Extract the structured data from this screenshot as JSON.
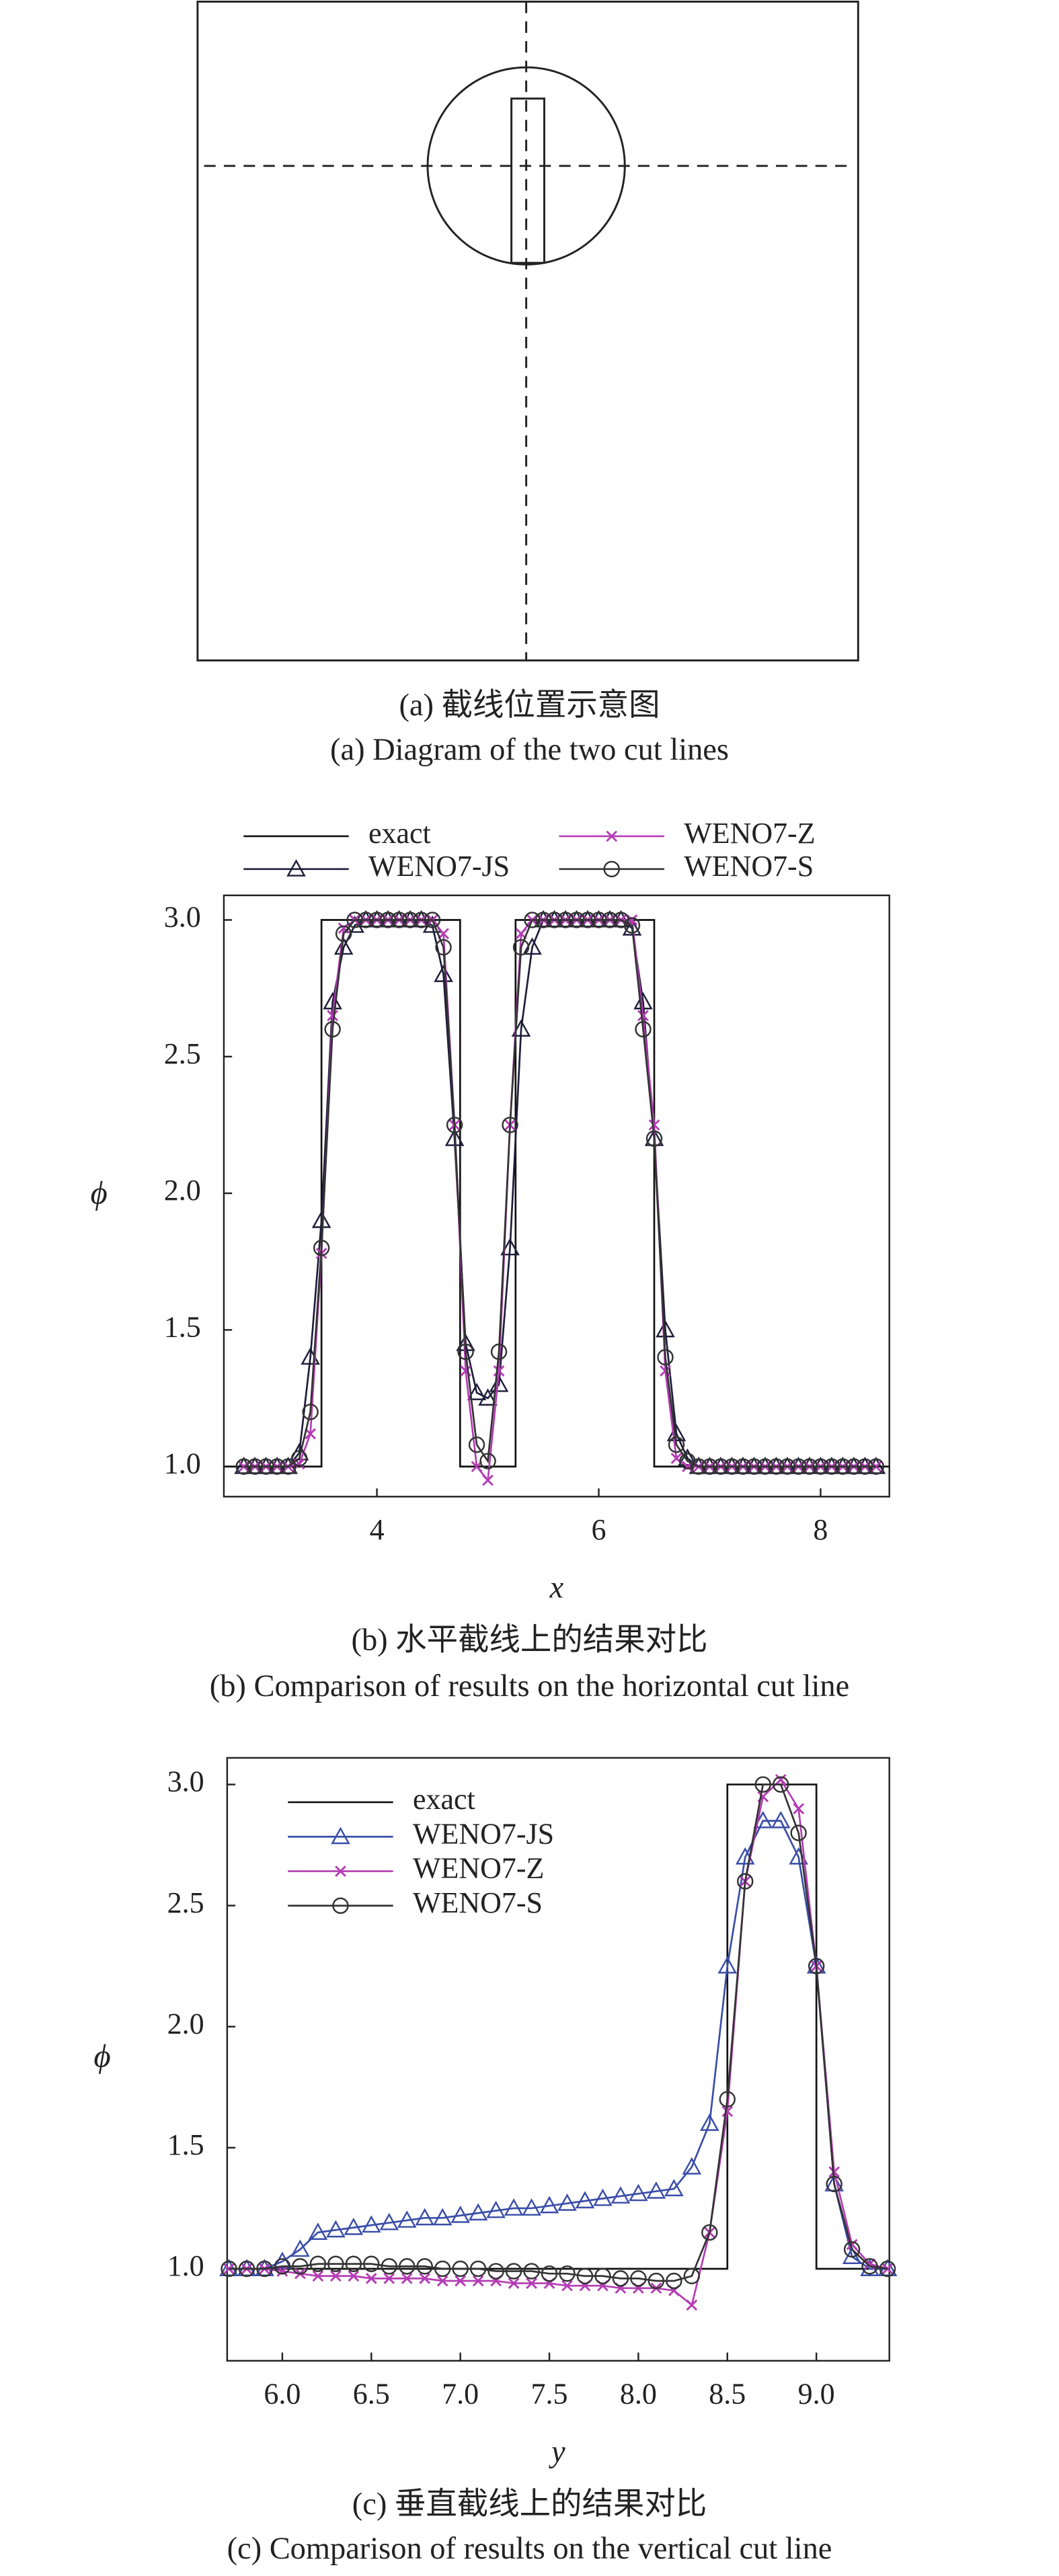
{
  "diagram": {
    "captions": [
      "(a) 截线位置示意图",
      "(a) Diagram of the two cut lines"
    ]
  },
  "chart_data": [
    {
      "type": "line",
      "captions": [
        "(b) 水平截线上的结果对比",
        "(b) Comparison of results on the horizontal cut line"
      ],
      "x_label": "x",
      "y_label": "ϕ",
      "legend": "top",
      "xlim": [
        2.62,
        8.62
      ],
      "ylim": [
        0.89,
        3.09
      ],
      "xticks": [
        4,
        6,
        8
      ],
      "yticks": [
        {
          "value": 1,
          "label": "1.0"
        },
        1.5,
        {
          "value": 2,
          "label": "2.0"
        },
        2.5,
        {
          "value": 3,
          "label": "3.0"
        }
      ],
      "x": [
        2.8,
        2.9,
        3.0,
        3.1,
        3.2,
        3.3,
        3.4,
        3.5,
        3.6,
        3.7,
        3.8,
        3.9,
        4.0,
        4.1,
        4.2,
        4.3,
        4.4,
        4.5,
        4.6,
        4.7,
        4.8,
        4.9,
        5.0,
        5.1,
        5.2,
        5.3,
        5.4,
        5.5,
        5.6,
        5.7,
        5.8,
        5.9,
        6.0,
        6.1,
        6.2,
        6.3,
        6.4,
        6.5,
        6.6,
        6.7,
        6.8,
        6.9,
        7.0,
        7.1,
        7.2,
        7.3,
        7.4,
        7.5,
        7.6,
        7.7,
        7.8,
        7.9,
        8.0,
        8.1,
        8.2,
        8.3,
        8.4,
        8.5
      ],
      "series": [
        {
          "name": "exact",
          "color": "#111111",
          "marker": "none",
          "x": [
            2.62,
            3.5,
            3.5,
            4.75,
            4.75,
            5.25,
            5.25,
            6.5,
            6.5,
            8.62
          ],
          "values": [
            1,
            1,
            3,
            3,
            1,
            1,
            3,
            3,
            1,
            1
          ]
        },
        {
          "name": "WENO7-JS",
          "color": "#1d1d3a",
          "marker": "triangle",
          "values": [
            1,
            1,
            1,
            1,
            1,
            1.05,
            1.4,
            1.9,
            2.7,
            2.9,
            2.98,
            3,
            3,
            3,
            3,
            3,
            3,
            2.98,
            2.8,
            2.2,
            1.45,
            1.27,
            1.25,
            1.3,
            1.8,
            2.6,
            2.9,
            3,
            3,
            3,
            3,
            3,
            3,
            3,
            3,
            2.97,
            2.7,
            2.2,
            1.5,
            1.12,
            1.03,
            1,
            1,
            1,
            1,
            1,
            1,
            1,
            1,
            1,
            1,
            1,
            1,
            1,
            1,
            1,
            1,
            1
          ]
        },
        {
          "name": "WENO7-Z",
          "color": "#b43cb4",
          "marker": "x",
          "values": [
            1,
            1,
            1,
            1,
            1,
            1.01,
            1.12,
            1.78,
            2.65,
            2.97,
            3,
            3,
            3,
            3,
            3,
            3,
            3,
            3,
            2.95,
            2.25,
            1.35,
            1,
            0.95,
            1.35,
            2.25,
            2.95,
            3,
            3,
            3,
            3,
            3,
            3,
            3,
            3,
            3,
            3,
            2.65,
            2.25,
            1.35,
            1.03,
            1,
            1,
            1,
            1,
            1,
            1,
            1,
            1,
            1,
            1,
            1,
            1,
            1,
            1,
            1,
            1,
            1,
            1
          ]
        },
        {
          "name": "WENO7-S",
          "color": "#333333",
          "marker": "circle",
          "values": [
            1,
            1,
            1,
            1,
            1,
            1.03,
            1.2,
            1.8,
            2.6,
            2.95,
            3,
            3,
            3,
            3,
            3,
            3,
            3,
            3,
            2.9,
            2.25,
            1.42,
            1.08,
            1.02,
            1.42,
            2.25,
            2.9,
            3,
            3,
            3,
            3,
            3,
            3,
            3,
            3,
            3,
            2.98,
            2.6,
            2.2,
            1.4,
            1.08,
            1.02,
            1,
            1,
            1,
            1,
            1,
            1,
            1,
            1,
            1,
            1,
            1,
            1,
            1,
            1,
            1,
            1,
            1
          ]
        }
      ]
    },
    {
      "type": "line",
      "captions": [
        "(c) 垂直截线上的结果对比",
        "(c) Comparison of results on the vertical cut line"
      ],
      "x_label": "y",
      "y_label": "ϕ",
      "legend": "upper left",
      "xlim": [
        5.69,
        9.41
      ],
      "ylim": [
        0.62,
        3.11
      ],
      "xticks": [
        {
          "value": 6,
          "label": "6.0"
        },
        6.5,
        {
          "value": 7,
          "label": "7.0"
        },
        7.5,
        {
          "value": 8,
          "label": "8.0"
        },
        8.5,
        {
          "value": 9,
          "label": "9.0"
        }
      ],
      "yticks": [
        {
          "value": 1,
          "label": "1.0"
        },
        1.5,
        {
          "value": 2,
          "label": "2.0"
        },
        2.5,
        {
          "value": 3,
          "label": "3.0"
        }
      ],
      "x": [
        5.7,
        5.8,
        5.9,
        6.0,
        6.1,
        6.2,
        6.3,
        6.4,
        6.5,
        6.6,
        6.7,
        6.8,
        6.9,
        7.0,
        7.1,
        7.2,
        7.3,
        7.4,
        7.5,
        7.6,
        7.7,
        7.8,
        7.9,
        8.0,
        8.1,
        8.2,
        8.3,
        8.4,
        8.5,
        8.6,
        8.7,
        8.8,
        8.9,
        9.0,
        9.1,
        9.2,
        9.3,
        9.4
      ],
      "series": [
        {
          "name": "exact",
          "color": "#111111",
          "marker": "none",
          "x": [
            5.69,
            8.5,
            8.5,
            9.0,
            9.0,
            9.41
          ],
          "values": [
            1,
            1,
            3,
            3,
            1,
            1
          ]
        },
        {
          "name": "WENO7-JS",
          "color": "#3a4da8",
          "marker": "triangle",
          "values": [
            1,
            1,
            1,
            1.03,
            1.08,
            1.15,
            1.16,
            1.17,
            1.18,
            1.19,
            1.2,
            1.21,
            1.21,
            1.22,
            1.23,
            1.24,
            1.25,
            1.25,
            1.26,
            1.27,
            1.28,
            1.29,
            1.3,
            1.31,
            1.32,
            1.33,
            1.42,
            1.6,
            2.25,
            2.7,
            2.85,
            2.85,
            2.7,
            2.25,
            1.35,
            1.05,
            1,
            1
          ]
        },
        {
          "name": "WENO7-Z",
          "color": "#b43cb4",
          "marker": "x",
          "values": [
            1,
            1,
            1,
            0.99,
            0.98,
            0.97,
            0.97,
            0.97,
            0.96,
            0.96,
            0.96,
            0.96,
            0.95,
            0.95,
            0.95,
            0.95,
            0.94,
            0.94,
            0.94,
            0.93,
            0.93,
            0.93,
            0.92,
            0.92,
            0.92,
            0.91,
            0.85,
            1.15,
            1.65,
            2.6,
            2.95,
            3.02,
            2.9,
            2.25,
            1.4,
            1.1,
            1.02,
            1
          ]
        },
        {
          "name": "WENO7-S",
          "color": "#333333",
          "marker": "circle",
          "values": [
            1,
            1,
            1,
            1.01,
            1.01,
            1.02,
            1.02,
            1.02,
            1.02,
            1.01,
            1.01,
            1.01,
            1,
            1,
            1,
            0.99,
            0.99,
            0.99,
            0.98,
            0.98,
            0.97,
            0.97,
            0.96,
            0.96,
            0.95,
            0.95,
            0.97,
            1.15,
            1.7,
            2.6,
            3,
            3,
            2.8,
            2.25,
            1.35,
            1.08,
            1.01,
            1
          ]
        }
      ]
    }
  ]
}
